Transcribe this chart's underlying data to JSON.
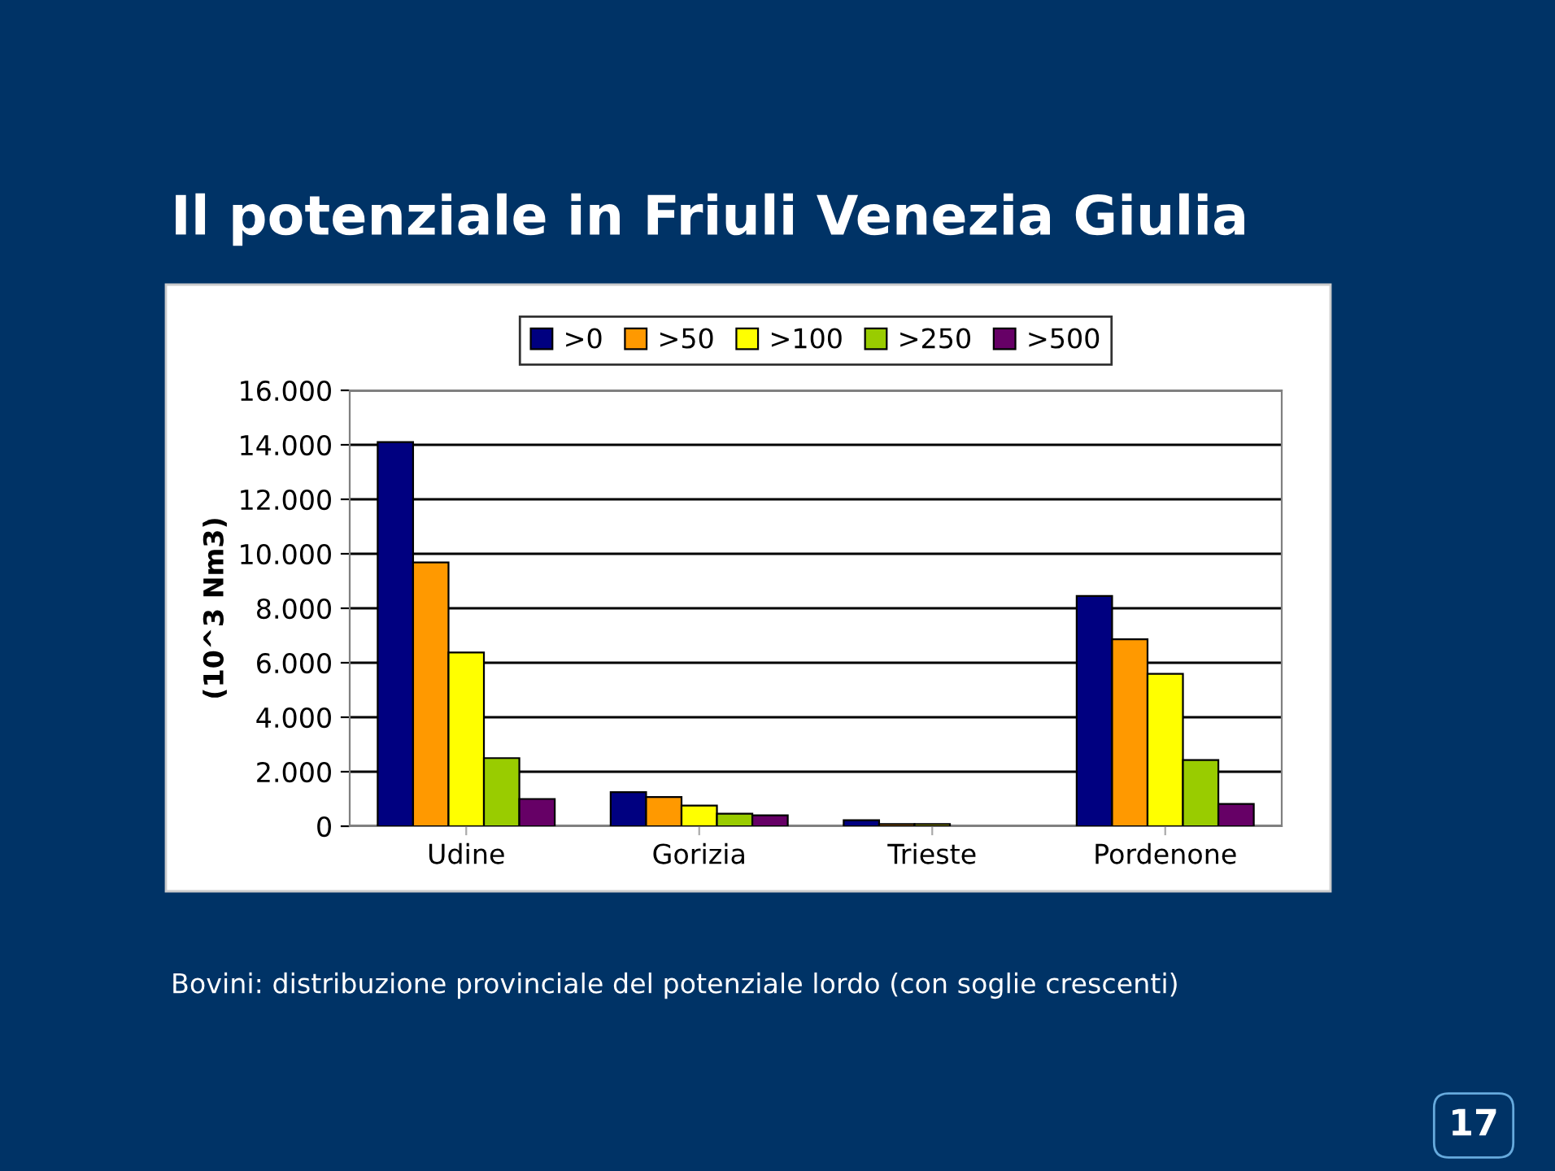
{
  "chart_data": {
    "type": "bar",
    "title": "Il potenziale in Friuli Venezia Giulia",
    "ylabel": "(10^3 Nm3)",
    "categories": [
      "Udine",
      "Gorizia",
      "Trieste",
      "Pordenone"
    ],
    "series": [
      {
        "name": ">0",
        "color": "#000080",
        "values": [
          14100,
          1250,
          220,
          8450
        ]
      },
      {
        "name": ">50",
        "color": "#ff9900",
        "values": [
          9680,
          1070,
          80,
          6860
        ]
      },
      {
        "name": ">100",
        "color": "#ffff00",
        "values": [
          6380,
          760,
          80,
          5590
        ]
      },
      {
        "name": ">250",
        "color": "#99cc00",
        "values": [
          2500,
          460,
          null,
          2430
        ]
      },
      {
        "name": ">500",
        "color": "#660066",
        "values": [
          1000,
          400,
          null,
          820
        ]
      }
    ],
    "ylim": [
      0,
      16000
    ],
    "yticks": [
      {
        "value": 0,
        "label": "0"
      },
      {
        "value": 2000,
        "label": "2.000"
      },
      {
        "value": 4000,
        "label": "4.000"
      },
      {
        "value": 6000,
        "label": "6.000"
      },
      {
        "value": 8000,
        "label": "8.000"
      },
      {
        "value": 10000,
        "label": "10.000"
      },
      {
        "value": 12000,
        "label": "12.000"
      },
      {
        "value": 14000,
        "label": "14.000"
      },
      {
        "value": 16000,
        "label": "16.000"
      }
    ],
    "grid": "y",
    "legend": "top",
    "annotations": [
      "Bovini: distribuzione provinciale del potenziale lordo (con soglie crescenti)",
      "17"
    ]
  }
}
